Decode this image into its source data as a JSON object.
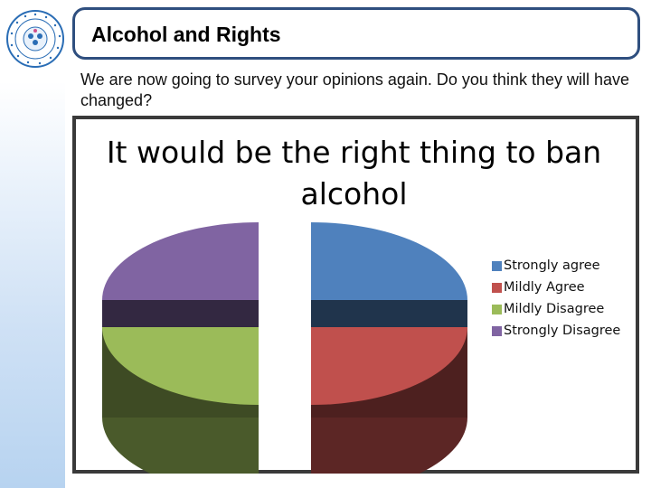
{
  "slide": {
    "title": "Alcohol and Rights",
    "subtitle": "We are now going to survey your opinions again.  Do you think they will have changed?"
  },
  "logo": {
    "icon": "rights-respecting-schools-unicef-badge-icon",
    "color": "#2a6db5"
  },
  "chart_data": {
    "type": "pie",
    "style": "3d-exploded",
    "title": "It would be the right thing to ban alcohol",
    "categories": [
      "Strongly agree",
      "Mildly Agree",
      "Mildly Disagree",
      "Strongly Disagree"
    ],
    "values": [
      25,
      25,
      25,
      25
    ],
    "colors": [
      "#4f81bd",
      "#c0504d",
      "#9bbb59",
      "#8064a2"
    ],
    "legend_position": "right"
  }
}
